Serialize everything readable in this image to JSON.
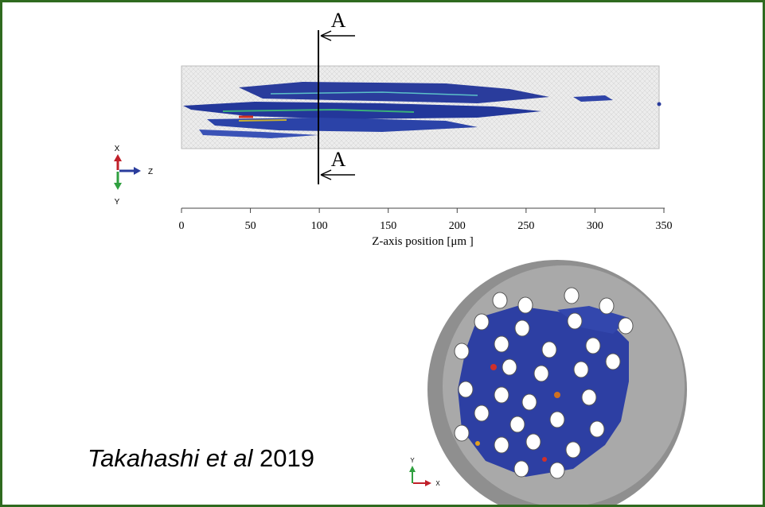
{
  "figure": {
    "section_marks": [
      "A",
      "A"
    ],
    "triad_top": {
      "x": "X",
      "z": "Z",
      "y": "Y"
    },
    "axis": {
      "ticks": [
        0,
        50,
        100,
        150,
        200,
        250,
        300,
        350
      ],
      "label": "Z-axis position [μm ]"
    },
    "triad_bottom": {
      "y": "Y",
      "x": "X"
    }
  },
  "caption": {
    "author": "Takahashi et al",
    "year": "2019"
  }
}
